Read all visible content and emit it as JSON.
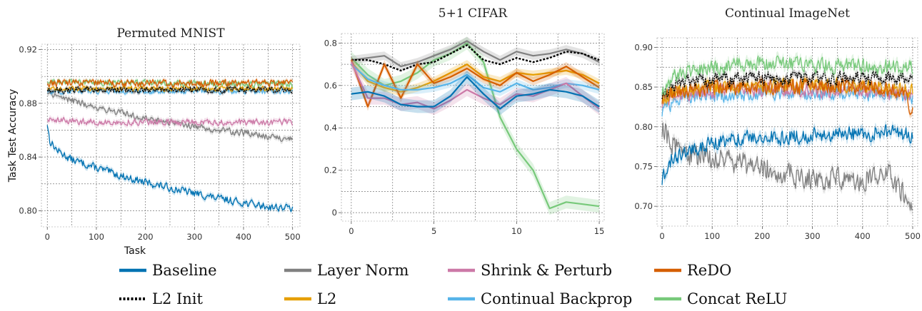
{
  "chart_data": [
    {
      "type": "line",
      "title": "Permuted MNIST",
      "xlabel": "Task",
      "ylabel": "Task Test Accuracy",
      "xlim": [
        -12,
        515
      ],
      "ylim": [
        0.788,
        0.924
      ],
      "xticks": [
        0,
        100,
        200,
        300,
        400,
        500
      ],
      "yticks": [
        0.8,
        0.84,
        0.88,
        0.92
      ],
      "ytick_labels": [
        "0.80",
        "0.84",
        "0.88",
        "0.92"
      ],
      "grid": true,
      "series": [
        {
          "name": "Baseline",
          "color": "#0072b2",
          "dense": true,
          "noise": 0.0035,
          "band": 0.002,
          "x": [
            0,
            5,
            20,
            50,
            100,
            150,
            200,
            250,
            300,
            350,
            400,
            450,
            500
          ],
          "values": [
            0.865,
            0.852,
            0.845,
            0.838,
            0.832,
            0.826,
            0.821,
            0.817,
            0.813,
            0.809,
            0.806,
            0.803,
            0.802
          ]
        },
        {
          "name": "Layer Norm",
          "color": "#808080",
          "dense": true,
          "noise": 0.003,
          "band": 0.002,
          "x": [
            0,
            50,
            100,
            150,
            200,
            250,
            300,
            350,
            400,
            450,
            500
          ],
          "values": [
            0.888,
            0.882,
            0.877,
            0.873,
            0.869,
            0.866,
            0.863,
            0.86,
            0.858,
            0.855,
            0.853
          ]
        },
        {
          "name": "Shrink & Perturb",
          "color": "#cc79a7",
          "dense": true,
          "noise": 0.003,
          "band": 0.002,
          "x": [
            0,
            100,
            200,
            300,
            400,
            500
          ],
          "values": [
            0.868,
            0.866,
            0.866,
            0.866,
            0.866,
            0.866
          ]
        },
        {
          "name": "Continual Backprop",
          "color": "#56b4e9",
          "dense": true,
          "noise": 0.0025,
          "band": 0.0015,
          "x": [
            0,
            500
          ],
          "values": [
            0.889,
            0.889
          ]
        },
        {
          "name": "L2",
          "color": "#e69f00",
          "dense": true,
          "noise": 0.0025,
          "band": 0.0015,
          "x": [
            0,
            500
          ],
          "values": [
            0.891,
            0.891
          ]
        },
        {
          "name": "Concat ReLU",
          "color": "#77c97a",
          "dense": true,
          "noise": 0.003,
          "band": 0.0015,
          "x": [
            0,
            500
          ],
          "values": [
            0.896,
            0.894
          ]
        },
        {
          "name": "ReDO",
          "color": "#d55e00",
          "dense": true,
          "noise": 0.0035,
          "band": 0.0015,
          "x": [
            0,
            500
          ],
          "values": [
            0.895,
            0.895
          ]
        },
        {
          "name": "L2 Init",
          "color": "#000000",
          "dashed": true,
          "dense": true,
          "noise": 0.003,
          "band": 0.0015,
          "x": [
            0,
            500
          ],
          "values": [
            0.89,
            0.89
          ]
        }
      ]
    },
    {
      "type": "line",
      "title": "5+1 CIFAR",
      "xlabel": "",
      "ylabel": "",
      "xlim": [
        -0.6,
        15.3
      ],
      "ylim": [
        -0.04,
        0.845
      ],
      "xticks": [
        0,
        5,
        10,
        15
      ],
      "yticks": [
        0,
        0.2,
        0.4,
        0.6,
        0.8
      ],
      "ytick_labels": [
        "0",
        "0.2",
        "0.4",
        "0.6",
        "0.8"
      ],
      "grid": true,
      "series": [
        {
          "name": "Concat ReLU",
          "color": "#77c97a",
          "band": 0.03,
          "x": [
            0,
            1,
            2,
            3,
            4,
            5,
            6,
            7,
            8,
            9,
            10,
            11,
            12,
            13,
            14,
            15
          ],
          "values": [
            0.73,
            0.65,
            0.6,
            0.62,
            0.66,
            0.72,
            0.75,
            0.8,
            0.71,
            0.45,
            0.3,
            0.2,
            0.02,
            0.05,
            0.04,
            0.03
          ]
        },
        {
          "name": "Layer Norm",
          "color": "#808080",
          "band": 0.02,
          "x": [
            0,
            1,
            2,
            3,
            4,
            5,
            6,
            7,
            8,
            9,
            10,
            11,
            12,
            13,
            14,
            15
          ],
          "values": [
            0.72,
            0.73,
            0.74,
            0.69,
            0.71,
            0.74,
            0.77,
            0.81,
            0.76,
            0.72,
            0.76,
            0.74,
            0.75,
            0.77,
            0.75,
            0.71
          ]
        },
        {
          "name": "L2 Init",
          "color": "#000000",
          "dashed": true,
          "band": 0,
          "x": [
            0,
            1,
            2,
            3,
            4,
            5,
            6,
            7,
            8,
            9,
            10,
            11,
            12,
            13,
            14,
            15
          ],
          "values": [
            0.72,
            0.72,
            0.7,
            0.67,
            0.7,
            0.71,
            0.75,
            0.79,
            0.72,
            0.7,
            0.73,
            0.71,
            0.73,
            0.76,
            0.75,
            0.72
          ]
        },
        {
          "name": "L2",
          "color": "#e69f00",
          "band": 0.02,
          "x": [
            0,
            1,
            2,
            3,
            4,
            5,
            6,
            7,
            8,
            9,
            10,
            11,
            12,
            13,
            14,
            15
          ],
          "values": [
            0.71,
            0.62,
            0.59,
            0.57,
            0.59,
            0.62,
            0.66,
            0.7,
            0.64,
            0.62,
            0.66,
            0.65,
            0.66,
            0.67,
            0.65,
            0.61
          ]
        },
        {
          "name": "ReDO",
          "color": "#d55e00",
          "band": 0.02,
          "x": [
            0,
            1,
            2,
            3,
            4,
            5,
            6,
            7,
            8,
            9,
            10,
            11,
            12,
            13,
            14,
            15
          ],
          "values": [
            0.72,
            0.5,
            0.7,
            0.54,
            0.7,
            0.61,
            0.64,
            0.68,
            0.63,
            0.6,
            0.66,
            0.62,
            0.65,
            0.69,
            0.64,
            0.59
          ]
        },
        {
          "name": "Continual Backprop",
          "color": "#56b4e9",
          "band": 0.02,
          "x": [
            0,
            1,
            2,
            3,
            4,
            5,
            6,
            7,
            8,
            9,
            10,
            11,
            12,
            13,
            14,
            15
          ],
          "values": [
            0.7,
            0.63,
            0.6,
            0.58,
            0.58,
            0.59,
            0.61,
            0.65,
            0.59,
            0.57,
            0.61,
            0.58,
            0.59,
            0.61,
            0.6,
            0.58
          ]
        },
        {
          "name": "Shrink & Perturb",
          "color": "#cc79a7",
          "band": 0.03,
          "x": [
            0,
            1,
            2,
            3,
            4,
            5,
            6,
            7,
            8,
            9,
            10,
            11,
            12,
            13,
            14,
            15
          ],
          "values": [
            0.71,
            0.54,
            0.54,
            0.51,
            0.52,
            0.49,
            0.53,
            0.58,
            0.54,
            0.51,
            0.56,
            0.55,
            0.58,
            0.61,
            0.55,
            0.49
          ]
        },
        {
          "name": "Baseline",
          "color": "#0072b2",
          "band": 0.03,
          "x": [
            0,
            1,
            2,
            3,
            4,
            5,
            6,
            7,
            8,
            9,
            10,
            11,
            12,
            13,
            14,
            15
          ],
          "values": [
            0.56,
            0.57,
            0.55,
            0.51,
            0.5,
            0.5,
            0.55,
            0.64,
            0.56,
            0.49,
            0.55,
            0.56,
            0.58,
            0.57,
            0.55,
            0.5
          ]
        }
      ]
    },
    {
      "type": "line",
      "title": "Continual ImageNet",
      "xlabel": "",
      "ylabel": "",
      "xlim": [
        -10,
        510
      ],
      "ylim": [
        0.675,
        0.912
      ],
      "xticks": [
        0,
        100,
        200,
        300,
        400,
        500
      ],
      "yticks": [
        0.7,
        0.75,
        0.8,
        0.85,
        0.9
      ],
      "ytick_labels": [
        "0.70",
        "0.75",
        "0.80",
        "0.85",
        "0.90"
      ],
      "grid": true,
      "series": [
        {
          "name": "Layer Norm",
          "color": "#808080",
          "dense": true,
          "noise": 0.018,
          "band": 0.006,
          "x": [
            0,
            20,
            50,
            100,
            150,
            200,
            250,
            300,
            350,
            400,
            450,
            480,
            500
          ],
          "values": [
            0.8,
            0.78,
            0.765,
            0.76,
            0.755,
            0.75,
            0.74,
            0.735,
            0.735,
            0.735,
            0.74,
            0.72,
            0.695
          ]
        },
        {
          "name": "Baseline",
          "color": "#0072b2",
          "dense": true,
          "noise": 0.012,
          "band": 0.006,
          "x": [
            0,
            20,
            50,
            100,
            150,
            200,
            250,
            300,
            350,
            400,
            450,
            500
          ],
          "values": [
            0.735,
            0.76,
            0.77,
            0.78,
            0.785,
            0.785,
            0.788,
            0.79,
            0.79,
            0.79,
            0.795,
            0.79
          ]
        },
        {
          "name": "Continual Backprop",
          "color": "#56b4e9",
          "dense": true,
          "noise": 0.011,
          "band": 0.005,
          "x": [
            0,
            30,
            100,
            200,
            300,
            400,
            500
          ],
          "values": [
            0.82,
            0.835,
            0.84,
            0.842,
            0.842,
            0.842,
            0.835
          ]
        },
        {
          "name": "Shrink & Perturb",
          "color": "#cc79a7",
          "dense": true,
          "noise": 0.011,
          "band": 0.005,
          "x": [
            0,
            30,
            100,
            200,
            300,
            400,
            500
          ],
          "values": [
            0.83,
            0.84,
            0.845,
            0.846,
            0.846,
            0.845,
            0.84
          ]
        },
        {
          "name": "L2",
          "color": "#e69f00",
          "dense": true,
          "noise": 0.011,
          "band": 0.005,
          "x": [
            0,
            30,
            100,
            200,
            300,
            400,
            500
          ],
          "values": [
            0.835,
            0.845,
            0.85,
            0.852,
            0.852,
            0.852,
            0.845
          ]
        },
        {
          "name": "ReDO",
          "color": "#d55e00",
          "dense": true,
          "noise": 0.012,
          "band": 0.005,
          "x": [
            0,
            30,
            100,
            200,
            300,
            400,
            480,
            500
          ],
          "values": [
            0.835,
            0.845,
            0.85,
            0.85,
            0.85,
            0.85,
            0.845,
            0.82
          ]
        },
        {
          "name": "L2 Init",
          "color": "#000000",
          "dashed": true,
          "dense": true,
          "noise": 0.011,
          "band": 0.004,
          "x": [
            0,
            30,
            100,
            200,
            300,
            400,
            500
          ],
          "values": [
            0.84,
            0.855,
            0.86,
            0.86,
            0.86,
            0.862,
            0.86
          ]
        },
        {
          "name": "Concat ReLU",
          "color": "#77c97a",
          "dense": true,
          "noise": 0.012,
          "band": 0.006,
          "x": [
            0,
            30,
            100,
            200,
            300,
            400,
            500
          ],
          "values": [
            0.845,
            0.865,
            0.875,
            0.88,
            0.878,
            0.876,
            0.875
          ]
        }
      ]
    }
  ],
  "legend": {
    "entries": [
      {
        "label": "Baseline",
        "color": "#0072b2",
        "dashed": false
      },
      {
        "label": "L2 Init",
        "color": "#000000",
        "dashed": true
      },
      {
        "label": "Layer Norm",
        "color": "#808080",
        "dashed": false
      },
      {
        "label": "L2",
        "color": "#e69f00",
        "dashed": false
      },
      {
        "label": "Shrink & Perturb",
        "color": "#cc79a7",
        "dashed": false
      },
      {
        "label": "Continual Backprop",
        "color": "#56b4e9",
        "dashed": false
      },
      {
        "label": "ReDO",
        "color": "#d55e00",
        "dashed": false
      },
      {
        "label": "Concat ReLU",
        "color": "#77c97a",
        "dashed": false
      }
    ]
  }
}
